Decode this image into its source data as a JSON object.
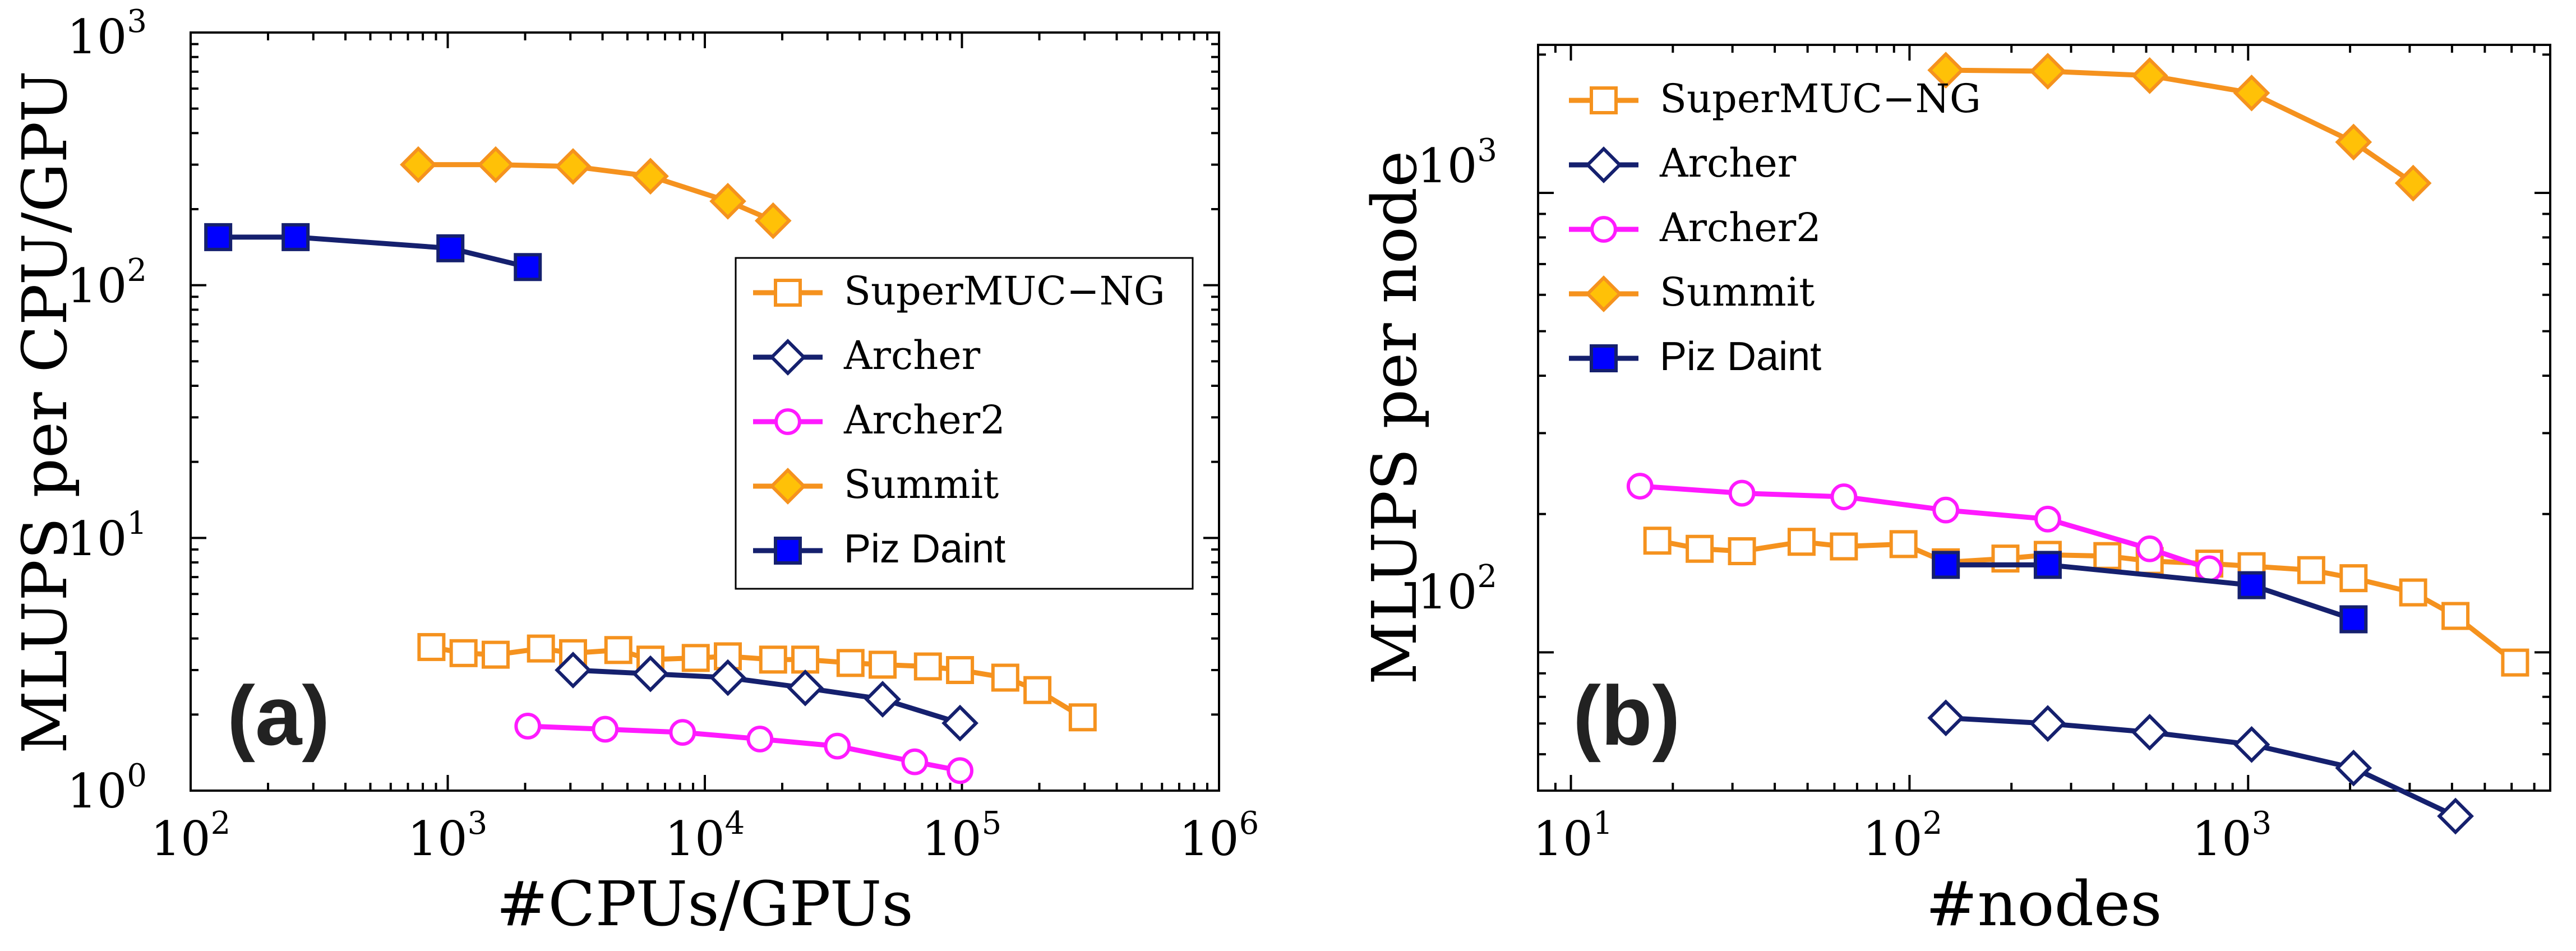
{
  "chart_data": [
    {
      "panel_label": "(a)",
      "type": "line",
      "xscale": "log",
      "yscale": "log",
      "xlim": [
        100,
        1000000
      ],
      "ylim": [
        1,
        1000
      ],
      "xlabel": "#CPUs/GPUs",
      "ylabel": "MLUPS  per CPU/GPU",
      "xticks": [
        {
          "base": "10",
          "exp": "2"
        },
        {
          "base": "10",
          "exp": "3"
        },
        {
          "base": "10",
          "exp": "4"
        },
        {
          "base": "10",
          "exp": "5"
        },
        {
          "base": "10",
          "exp": "6"
        }
      ],
      "yticks": [
        {
          "base": "10",
          "exp": "0"
        },
        {
          "base": "10",
          "exp": "1"
        },
        {
          "base": "10",
          "exp": "2"
        },
        {
          "base": "10",
          "exp": "3"
        }
      ],
      "legend_position": "center-right",
      "series": [
        {
          "name": "SuperMUC−NG",
          "marker": "square-open",
          "x": [
            864,
            1152,
            1536,
            2304,
            3072,
            4608,
            6144,
            9216,
            12288,
            18432,
            24576,
            36864,
            49152,
            73728,
            98304,
            147456,
            196608,
            294912
          ],
          "y": [
            3.7,
            3.5,
            3.45,
            3.65,
            3.5,
            3.6,
            3.3,
            3.35,
            3.4,
            3.3,
            3.3,
            3.2,
            3.15,
            3.1,
            3.0,
            2.8,
            2.5,
            1.95
          ]
        },
        {
          "name": "Archer",
          "marker": "diamond-open",
          "x": [
            3072,
            6144,
            12288,
            24576,
            49152,
            98304
          ],
          "y": [
            3.0,
            2.9,
            2.8,
            2.55,
            2.3,
            1.85
          ]
        },
        {
          "name": "Archer2",
          "marker": "circle-open",
          "x": [
            2048,
            4096,
            8192,
            16384,
            32768,
            65536,
            98304
          ],
          "y": [
            1.8,
            1.75,
            1.7,
            1.6,
            1.5,
            1.3,
            1.2
          ]
        },
        {
          "name": "Summit",
          "marker": "diamond-filled",
          "x": [
            768,
            1536,
            3072,
            6144,
            12288,
            18432
          ],
          "y": [
            300,
            300,
            295,
            270,
            215,
            180
          ]
        },
        {
          "name": "Piz Daint",
          "marker": "square-filled",
          "x": [
            128,
            256,
            1024,
            2048
          ],
          "y": [
            155,
            155,
            140,
            118
          ]
        }
      ]
    },
    {
      "panel_label": "(b)",
      "type": "line",
      "xscale": "log",
      "yscale": "log",
      "xlim": [
        8,
        7800
      ],
      "ylim": [
        50,
        2100
      ],
      "xlabel": "#nodes",
      "ylabel": "MLUPS  per node",
      "xticks": [
        {
          "base": "10",
          "exp": "1"
        },
        {
          "base": "10",
          "exp": "2"
        },
        {
          "base": "10",
          "exp": "3"
        }
      ],
      "yticks": [
        {
          "base": "10",
          "exp": "2"
        },
        {
          "base": "10",
          "exp": "3"
        }
      ],
      "legend_position": "top-left",
      "series": [
        {
          "name": "SuperMUC−NG",
          "marker": "square-open",
          "x": [
            18,
            24,
            32,
            48,
            64,
            96,
            128,
            192,
            256,
            384,
            512,
            768,
            1024,
            1536,
            2048,
            3072,
            4096,
            6144
          ],
          "y": [
            175,
            168,
            166,
            174,
            170,
            172,
            157,
            160,
            163,
            162,
            158,
            156,
            154,
            151,
            145,
            135,
            120,
            95
          ]
        },
        {
          "name": "Archer",
          "marker": "diamond-open",
          "x": [
            128,
            256,
            512,
            1024,
            2048,
            4096
          ],
          "y": [
            72,
            70,
            67,
            63,
            56,
            44
          ]
        },
        {
          "name": "Archer2",
          "marker": "circle-open",
          "x": [
            16,
            32,
            64,
            128,
            256,
            512,
            768
          ],
          "y": [
            230,
            222,
            218,
            204,
            195,
            168,
            152
          ]
        },
        {
          "name": "Summit",
          "marker": "diamond-filled",
          "x": [
            128,
            256,
            512,
            1024,
            2048,
            3072
          ],
          "y": [
            1850,
            1840,
            1800,
            1650,
            1290,
            1050
          ]
        },
        {
          "name": "Piz Daint",
          "marker": "square-filled",
          "x": [
            128,
            256,
            1024,
            2048
          ],
          "y": [
            155,
            155,
            140,
            118
          ]
        }
      ]
    }
  ],
  "style": {
    "series_colors": {
      "SuperMUC−NG": "#f5921e",
      "Archer": "#15206e",
      "Archer2": "#ff1aff",
      "Summit": "#f5921e",
      "Piz Daint": "#15206e"
    },
    "marker_fills": {
      "Summit": "#ffc107",
      "Piz Daint": "#0000ff"
    },
    "legend_fonts": {
      "SuperMUC−NG": "serif",
      "Archer": "serif",
      "Archer2": "serif",
      "Summit": "serif",
      "Piz Daint": "sans"
    }
  }
}
